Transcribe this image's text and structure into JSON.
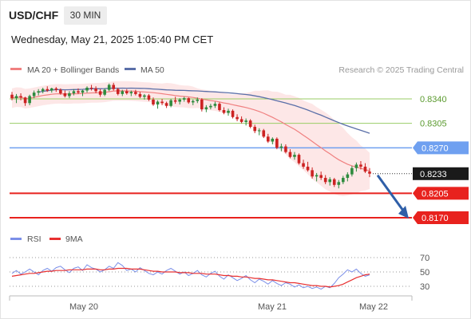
{
  "header": {
    "symbol": "USD/CHF",
    "timeframe": "30 MIN",
    "datetime": "Wednesday, May 21, 2025 1:05:40 PM CET"
  },
  "legend": {
    "ma20_label": "MA 20 + Bollinger Bands",
    "ma50_label": "MA 50",
    "credit": "Research © 2025 Trading Central",
    "rsi_label": "RSI",
    "rsi_ma_label": "9MA"
  },
  "colors": {
    "ma20": "#f08080",
    "bollinger_fill": "#fde3e3",
    "ma50": "#5a6fa8",
    "resistance_green": "#9acd66",
    "pivot_blue": "#6fa0f0",
    "support_red": "#e8221e",
    "candle_up": "#2e8b3e",
    "candle_down": "#cc2222",
    "rsi": "#7b8fe8",
    "rsi_ma": "#e83030",
    "arrow": "#2f5fa8"
  },
  "levels": [
    {
      "value": "0.8340",
      "kind": "resistance"
    },
    {
      "value": "0.8305",
      "kind": "resistance"
    },
    {
      "value": "0.8270",
      "kind": "pivot"
    },
    {
      "value": "0.8233",
      "kind": "last"
    },
    {
      "value": "0.8205",
      "kind": "support"
    },
    {
      "value": "0.8170",
      "kind": "support"
    }
  ],
  "x_axis": {
    "labels": [
      "May 20",
      "May 21",
      "May 22"
    ]
  },
  "rsi_axis": {
    "labels": [
      "70",
      "50",
      "30"
    ]
  },
  "chart_data": {
    "type": "candlestick",
    "price_range": [
      0.817,
      0.837
    ],
    "candles": [
      [
        0.8346,
        0.835,
        0.8338,
        0.8341
      ],
      [
        0.8341,
        0.8347,
        0.8334,
        0.8344
      ],
      [
        0.8344,
        0.8348,
        0.8338,
        0.8342
      ],
      [
        0.8342,
        0.8343,
        0.833,
        0.8334
      ],
      [
        0.8334,
        0.8346,
        0.8331,
        0.8344
      ],
      [
        0.8344,
        0.8352,
        0.8341,
        0.8349
      ],
      [
        0.8349,
        0.8354,
        0.8345,
        0.8351
      ],
      [
        0.8351,
        0.8356,
        0.8348,
        0.8354
      ],
      [
        0.8354,
        0.8358,
        0.835,
        0.8352
      ],
      [
        0.8352,
        0.8356,
        0.8349,
        0.8355
      ],
      [
        0.8355,
        0.8357,
        0.835,
        0.8353
      ],
      [
        0.8353,
        0.8355,
        0.8346,
        0.8348
      ],
      [
        0.8348,
        0.8352,
        0.8342,
        0.8344
      ],
      [
        0.8344,
        0.8351,
        0.8341,
        0.8348
      ],
      [
        0.8348,
        0.8354,
        0.8345,
        0.8351
      ],
      [
        0.8351,
        0.8355,
        0.8347,
        0.8349
      ],
      [
        0.8349,
        0.8353,
        0.8344,
        0.8352
      ],
      [
        0.8352,
        0.8358,
        0.8349,
        0.8356
      ],
      [
        0.8356,
        0.836,
        0.8352,
        0.8355
      ],
      [
        0.8355,
        0.8358,
        0.8348,
        0.8351
      ],
      [
        0.8351,
        0.8354,
        0.8343,
        0.8346
      ],
      [
        0.8346,
        0.8355,
        0.8344,
        0.8353
      ],
      [
        0.8353,
        0.8362,
        0.8351,
        0.836
      ],
      [
        0.836,
        0.8363,
        0.8352,
        0.8354
      ],
      [
        0.8354,
        0.8356,
        0.8345,
        0.8347
      ],
      [
        0.8347,
        0.8353,
        0.8344,
        0.8351
      ],
      [
        0.8351,
        0.8354,
        0.8346,
        0.8348
      ],
      [
        0.8348,
        0.8352,
        0.8344,
        0.835
      ],
      [
        0.835,
        0.8353,
        0.8345,
        0.8347
      ],
      [
        0.8347,
        0.835,
        0.8341,
        0.8343
      ],
      [
        0.8343,
        0.8347,
        0.8339,
        0.8345
      ],
      [
        0.8345,
        0.8347,
        0.8337,
        0.8339
      ],
      [
        0.8339,
        0.8342,
        0.833,
        0.8332
      ],
      [
        0.8332,
        0.8338,
        0.8326,
        0.8336
      ],
      [
        0.8336,
        0.834,
        0.8331,
        0.8334
      ],
      [
        0.8334,
        0.8336,
        0.8327,
        0.833
      ],
      [
        0.833,
        0.834,
        0.8328,
        0.8338
      ],
      [
        0.8338,
        0.8343,
        0.8333,
        0.8336
      ],
      [
        0.8336,
        0.8341,
        0.8332,
        0.8339
      ],
      [
        0.8339,
        0.8343,
        0.8336,
        0.8341
      ],
      [
        0.8341,
        0.8342,
        0.8333,
        0.8335
      ],
      [
        0.8335,
        0.8339,
        0.8331,
        0.8337
      ],
      [
        0.8337,
        0.8342,
        0.8334,
        0.8339
      ],
      [
        0.8339,
        0.8341,
        0.8322,
        0.8325
      ],
      [
        0.8325,
        0.8331,
        0.8321,
        0.8328
      ],
      [
        0.8328,
        0.8333,
        0.8325,
        0.833
      ],
      [
        0.833,
        0.8336,
        0.8327,
        0.8333
      ],
      [
        0.8333,
        0.8335,
        0.8322,
        0.8324
      ],
      [
        0.8324,
        0.8328,
        0.8318,
        0.832
      ],
      [
        0.832,
        0.8326,
        0.8316,
        0.8323
      ],
      [
        0.8323,
        0.8325,
        0.8312,
        0.8314
      ],
      [
        0.8314,
        0.8318,
        0.8308,
        0.8311
      ],
      [
        0.8311,
        0.8315,
        0.8305,
        0.8307
      ],
      [
        0.8307,
        0.8312,
        0.8302,
        0.8309
      ],
      [
        0.8309,
        0.8311,
        0.8298,
        0.83
      ],
      [
        0.83,
        0.8303,
        0.8291,
        0.8294
      ],
      [
        0.8294,
        0.8298,
        0.8288,
        0.8295
      ],
      [
        0.8295,
        0.8297,
        0.8284,
        0.8286
      ],
      [
        0.8286,
        0.829,
        0.8277,
        0.8279
      ],
      [
        0.8279,
        0.8285,
        0.8275,
        0.8283
      ],
      [
        0.8283,
        0.8285,
        0.8268,
        0.827
      ],
      [
        0.827,
        0.8276,
        0.8265,
        0.8272
      ],
      [
        0.8272,
        0.8275,
        0.8262,
        0.8264
      ],
      [
        0.8264,
        0.8268,
        0.8255,
        0.8257
      ],
      [
        0.8257,
        0.8264,
        0.8253,
        0.826
      ],
      [
        0.826,
        0.8262,
        0.8246,
        0.8248
      ],
      [
        0.8248,
        0.8253,
        0.824,
        0.8243
      ],
      [
        0.8243,
        0.825,
        0.8236,
        0.8238
      ],
      [
        0.8238,
        0.8242,
        0.8226,
        0.8229
      ],
      [
        0.8229,
        0.8234,
        0.8222,
        0.8231
      ],
      [
        0.8231,
        0.8236,
        0.8224,
        0.8227
      ],
      [
        0.8227,
        0.8231,
        0.8218,
        0.8221
      ],
      [
        0.8221,
        0.8228,
        0.8216,
        0.8225
      ],
      [
        0.8225,
        0.8227,
        0.8214,
        0.8217
      ],
      [
        0.8217,
        0.8224,
        0.8212,
        0.8221
      ],
      [
        0.8221,
        0.823,
        0.8218,
        0.8227
      ],
      [
        0.8227,
        0.8235,
        0.8222,
        0.8232
      ],
      [
        0.8232,
        0.8244,
        0.8229,
        0.8241
      ],
      [
        0.8241,
        0.8249,
        0.8236,
        0.8246
      ],
      [
        0.8246,
        0.8251,
        0.8239,
        0.8243
      ],
      [
        0.8243,
        0.8248,
        0.8234,
        0.8236
      ],
      [
        0.8236,
        0.8241,
        0.8228,
        0.8233
      ]
    ],
    "rsi": {
      "range": [
        20,
        80
      ],
      "values": [
        48,
        52,
        47,
        50,
        54,
        50,
        46,
        52,
        55,
        51,
        56,
        58,
        53,
        49,
        55,
        57,
        52,
        60,
        56,
        54,
        50,
        53,
        58,
        55,
        63,
        59,
        52,
        54,
        50,
        56,
        52,
        48,
        46,
        50,
        47,
        52,
        55,
        51,
        47,
        50,
        45,
        48,
        52,
        46,
        43,
        48,
        51,
        44,
        40,
        46,
        42,
        38,
        41,
        45,
        39,
        35,
        40,
        37,
        33,
        38,
        34,
        31,
        35,
        33,
        29,
        32,
        28,
        30,
        27,
        29,
        26,
        30,
        28,
        34,
        42,
        47,
        53,
        50,
        54,
        48,
        44,
        46
      ],
      "ma_values": [
        44,
        45,
        46,
        47,
        48,
        48,
        49,
        50,
        51,
        51,
        52,
        52,
        52,
        53,
        53,
        53,
        53,
        54,
        54,
        54,
        53,
        53,
        54,
        54,
        55,
        55,
        55,
        54,
        54,
        54,
        53,
        52,
        51,
        51,
        50,
        50,
        50,
        50,
        49,
        49,
        49,
        48,
        48,
        48,
        47,
        47,
        47,
        46,
        45,
        45,
        44,
        44,
        43,
        43,
        42,
        41,
        41,
        40,
        39,
        39,
        38,
        37,
        36,
        35,
        35,
        34,
        33,
        32,
        31,
        31,
        30,
        30,
        29,
        30,
        31,
        33,
        36,
        39,
        42,
        44,
        46,
        47
      ]
    },
    "arrow": {
      "from": 0.8233,
      "to": 0.817
    }
  }
}
